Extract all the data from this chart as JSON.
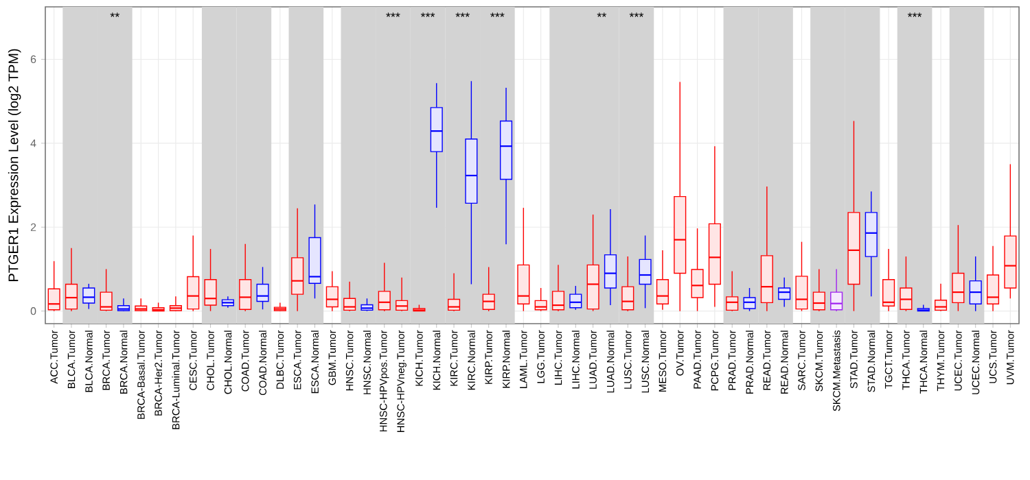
{
  "chart_data": {
    "type": "box",
    "ylabel": "PTGER1 Expression Level (log2 TPM)",
    "categories": [
      "ACC.Tumor",
      "BLCA.Tumor",
      "BLCA.Normal",
      "BRCA.Tumor",
      "BRCA.Normal",
      "BRCA-Basal.Tumor",
      "BRCA-Her2.Tumor",
      "BRCA-Luminal.Tumor",
      "CESC.Tumor",
      "CHOL.Tumor",
      "CHOL.Normal",
      "COAD.Tumor",
      "COAD.Normal",
      "DLBC.Tumor",
      "ESCA.Tumor",
      "ESCA.Normal",
      "GBM.Tumor",
      "HNSC.Tumor",
      "HNSC.Normal",
      "HNSC-HPVpos.Tumor",
      "HNSC-HPVneg.Tumor",
      "KICH.Tumor",
      "KICH.Normal",
      "KIRC.Tumor",
      "KIRC.Normal",
      "KIRP.Tumor",
      "KIRP.Normal",
      "LAML.Tumor",
      "LGG.Tumor",
      "LIHC.Tumor",
      "LIHC.Normal",
      "LUAD.Tumor",
      "LUAD.Normal",
      "LUSC.Tumor",
      "LUSC.Normal",
      "MESO.Tumor",
      "OV.Tumor",
      "PAAD.Tumor",
      "PCPG.Tumor",
      "PRAD.Tumor",
      "PRAD.Normal",
      "READ.Tumor",
      "READ.Normal",
      "SARC.Tumor",
      "SKCM.Tumor",
      "SKCM.Metastasis",
      "STAD.Tumor",
      "STAD.Normal",
      "TGCT.Tumor",
      "THCA.Tumor",
      "THCA.Normal",
      "THYM.Tumor",
      "UCEC.Tumor",
      "UCEC.Normal",
      "UCS.Tumor",
      "UVM.Tumor"
    ],
    "colors": [
      "#ff0000",
      "#ff0000",
      "#0000ff",
      "#ff0000",
      "#0000ff",
      "#ff0000",
      "#ff0000",
      "#ff0000",
      "#ff0000",
      "#ff0000",
      "#0000ff",
      "#ff0000",
      "#0000ff",
      "#ff0000",
      "#ff0000",
      "#0000ff",
      "#ff0000",
      "#ff0000",
      "#0000ff",
      "#ff0000",
      "#ff0000",
      "#ff0000",
      "#0000ff",
      "#ff0000",
      "#0000ff",
      "#ff0000",
      "#0000ff",
      "#ff0000",
      "#ff0000",
      "#ff0000",
      "#0000ff",
      "#ff0000",
      "#0000ff",
      "#ff0000",
      "#0000ff",
      "#ff0000",
      "#ff0000",
      "#ff0000",
      "#ff0000",
      "#ff0000",
      "#0000ff",
      "#ff0000",
      "#0000ff",
      "#ff0000",
      "#ff0000",
      "#a020f0",
      "#ff0000",
      "#0000ff",
      "#ff0000",
      "#ff0000",
      "#0000ff",
      "#ff0000",
      "#ff0000",
      "#0000ff",
      "#ff0000",
      "#ff0000"
    ],
    "boxes": [
      {
        "low": 0,
        "q1": 0.03,
        "median": 0.17,
        "q3": 0.53,
        "high": 1.19
      },
      {
        "low": 0,
        "q1": 0.05,
        "median": 0.32,
        "q3": 0.64,
        "high": 1.5
      },
      {
        "low": 0.05,
        "q1": 0.19,
        "median": 0.33,
        "q3": 0.55,
        "high": 0.65
      },
      {
        "low": 0,
        "q1": 0.02,
        "median": 0.1,
        "q3": 0.45,
        "high": 1.0
      },
      {
        "low": 0,
        "q1": 0.01,
        "median": 0.05,
        "q3": 0.13,
        "high": 0.3
      },
      {
        "low": 0,
        "q1": 0.01,
        "median": 0.05,
        "q3": 0.12,
        "high": 0.3
      },
      {
        "low": 0,
        "q1": 0.0,
        "median": 0.03,
        "q3": 0.08,
        "high": 0.2
      },
      {
        "low": 0,
        "q1": 0.01,
        "median": 0.07,
        "q3": 0.13,
        "high": 0.35
      },
      {
        "low": 0,
        "q1": 0.05,
        "median": 0.36,
        "q3": 0.82,
        "high": 1.8
      },
      {
        "low": 0,
        "q1": 0.14,
        "median": 0.3,
        "q3": 0.75,
        "high": 1.48
      },
      {
        "low": 0.08,
        "q1": 0.13,
        "median": 0.2,
        "q3": 0.27,
        "high": 0.35
      },
      {
        "low": 0,
        "q1": 0.04,
        "median": 0.33,
        "q3": 0.75,
        "high": 1.6
      },
      {
        "low": 0.04,
        "q1": 0.23,
        "median": 0.36,
        "q3": 0.64,
        "high": 1.05
      },
      {
        "low": 0,
        "q1": 0.01,
        "median": 0.05,
        "q3": 0.09,
        "high": 0.2
      },
      {
        "low": 0,
        "q1": 0.4,
        "median": 0.72,
        "q3": 1.27,
        "high": 2.45
      },
      {
        "low": 0.3,
        "q1": 0.66,
        "median": 0.82,
        "q3": 1.75,
        "high": 2.54
      },
      {
        "low": 0,
        "q1": 0.1,
        "median": 0.28,
        "q3": 0.58,
        "high": 0.95
      },
      {
        "low": 0,
        "q1": 0.02,
        "median": 0.1,
        "q3": 0.3,
        "high": 0.7
      },
      {
        "low": 0,
        "q1": 0.02,
        "median": 0.07,
        "q3": 0.15,
        "high": 0.3
      },
      {
        "low": 0,
        "q1": 0.03,
        "median": 0.21,
        "q3": 0.47,
        "high": 1.15
      },
      {
        "low": 0,
        "q1": 0.02,
        "median": 0.12,
        "q3": 0.25,
        "high": 0.8
      },
      {
        "low": 0,
        "q1": 0.0,
        "median": 0.02,
        "q3": 0.06,
        "high": 0.15
      },
      {
        "low": 2.46,
        "q1": 3.8,
        "median": 4.29,
        "q3": 4.85,
        "high": 5.43
      },
      {
        "low": 0,
        "q1": 0.02,
        "median": 0.1,
        "q3": 0.28,
        "high": 0.9
      },
      {
        "low": 0.64,
        "q1": 2.57,
        "median": 3.23,
        "q3": 4.1,
        "high": 5.48
      },
      {
        "low": 0,
        "q1": 0.04,
        "median": 0.23,
        "q3": 0.4,
        "high": 1.05
      },
      {
        "low": 1.59,
        "q1": 3.14,
        "median": 3.93,
        "q3": 4.53,
        "high": 5.32
      },
      {
        "low": 0,
        "q1": 0.17,
        "median": 0.36,
        "q3": 1.1,
        "high": 2.46
      },
      {
        "low": 0,
        "q1": 0.03,
        "median": 0.1,
        "q3": 0.25,
        "high": 0.55
      },
      {
        "low": 0,
        "q1": 0.03,
        "median": 0.14,
        "q3": 0.47,
        "high": 1.1
      },
      {
        "low": 0.03,
        "q1": 0.08,
        "median": 0.21,
        "q3": 0.4,
        "high": 0.6
      },
      {
        "low": 0,
        "q1": 0.05,
        "median": 0.64,
        "q3": 1.1,
        "high": 2.3
      },
      {
        "low": 0.14,
        "q1": 0.55,
        "median": 0.9,
        "q3": 1.34,
        "high": 2.43
      },
      {
        "low": 0,
        "q1": 0.03,
        "median": 0.23,
        "q3": 0.58,
        "high": 1.3
      },
      {
        "low": 0.07,
        "q1": 0.64,
        "median": 0.86,
        "q3": 1.23,
        "high": 1.8
      },
      {
        "low": 0.03,
        "q1": 0.17,
        "median": 0.36,
        "q3": 0.75,
        "high": 1.45
      },
      {
        "low": 0,
        "q1": 0.9,
        "median": 1.7,
        "q3": 2.73,
        "high": 5.46
      },
      {
        "low": 0,
        "q1": 0.32,
        "median": 0.61,
        "q3": 0.99,
        "high": 1.97
      },
      {
        "low": 0.1,
        "q1": 0.64,
        "median": 1.28,
        "q3": 2.08,
        "high": 3.93
      },
      {
        "low": 0,
        "q1": 0.02,
        "median": 0.21,
        "q3": 0.34,
        "high": 0.95
      },
      {
        "low": 0,
        "q1": 0.06,
        "median": 0.21,
        "q3": 0.32,
        "high": 0.55
      },
      {
        "low": 0,
        "q1": 0.2,
        "median": 0.58,
        "q3": 1.32,
        "high": 2.97
      },
      {
        "low": 0.1,
        "q1": 0.28,
        "median": 0.45,
        "q3": 0.55,
        "high": 0.8
      },
      {
        "low": 0,
        "q1": 0.05,
        "median": 0.28,
        "q3": 0.83,
        "high": 1.65
      },
      {
        "low": 0,
        "q1": 0.03,
        "median": 0.19,
        "q3": 0.45,
        "high": 1.0
      },
      {
        "low": 0,
        "q1": 0.03,
        "median": 0.18,
        "q3": 0.45,
        "high": 1.0
      },
      {
        "low": 0,
        "q1": 0.64,
        "median": 1.45,
        "q3": 2.35,
        "high": 4.53
      },
      {
        "low": 0.35,
        "q1": 1.3,
        "median": 1.86,
        "q3": 2.35,
        "high": 2.85
      },
      {
        "low": 0,
        "q1": 0.12,
        "median": 0.21,
        "q3": 0.75,
        "high": 1.48
      },
      {
        "low": 0,
        "q1": 0.04,
        "median": 0.28,
        "q3": 0.55,
        "high": 1.3
      },
      {
        "low": 0,
        "q1": 0.0,
        "median": 0.02,
        "q3": 0.06,
        "high": 0.15
      },
      {
        "low": 0,
        "q1": 0.02,
        "median": 0.1,
        "q3": 0.26,
        "high": 0.65
      },
      {
        "low": 0,
        "q1": 0.2,
        "median": 0.45,
        "q3": 0.9,
        "high": 2.05
      },
      {
        "low": 0,
        "q1": 0.17,
        "median": 0.45,
        "q3": 0.72,
        "high": 1.3
      },
      {
        "low": 0,
        "q1": 0.17,
        "median": 0.33,
        "q3": 0.86,
        "high": 1.55
      },
      {
        "low": 0.3,
        "q1": 0.55,
        "median": 1.08,
        "q3": 1.79,
        "high": 3.5
      }
    ],
    "bands": [
      {
        "axis": "x",
        "from": "BLCA.Tumor",
        "to": "BLCA.Normal",
        "color": "#d3d3d3"
      },
      {
        "axis": "x",
        "from": "BRCA.Tumor",
        "to": "BRCA.Normal",
        "color": "#d3d3d3",
        "label": "**"
      },
      {
        "axis": "x",
        "from": "CHOL.Tumor",
        "to": "CHOL.Normal",
        "color": "#d3d3d3"
      },
      {
        "axis": "x",
        "from": "COAD.Tumor",
        "to": "COAD.Normal",
        "color": "#d3d3d3"
      },
      {
        "axis": "x",
        "from": "ESCA.Tumor",
        "to": "ESCA.Normal",
        "color": "#d3d3d3"
      },
      {
        "axis": "x",
        "from": "HNSC.Tumor",
        "to": "HNSC.Normal",
        "color": "#d3d3d3"
      },
      {
        "axis": "x",
        "from": "HNSC-HPVpos.Tumor",
        "to": "HNSC-HPVneg.Tumor",
        "color": "#d3d3d3",
        "label": "***"
      },
      {
        "axis": "x",
        "from": "KICH.Tumor",
        "to": "KICH.Normal",
        "color": "#d3d3d3",
        "label": "***"
      },
      {
        "axis": "x",
        "from": "KIRC.Tumor",
        "to": "KIRC.Normal",
        "color": "#d3d3d3",
        "label": "***"
      },
      {
        "axis": "x",
        "from": "KIRP.Tumor",
        "to": "KIRP.Normal",
        "color": "#d3d3d3",
        "label": "***"
      },
      {
        "axis": "x",
        "from": "LIHC.Tumor",
        "to": "LIHC.Normal",
        "color": "#d3d3d3"
      },
      {
        "axis": "x",
        "from": "LUAD.Tumor",
        "to": "LUAD.Normal",
        "color": "#d3d3d3",
        "label": "**"
      },
      {
        "axis": "x",
        "from": "LUSC.Tumor",
        "to": "LUSC.Normal",
        "color": "#d3d3d3",
        "label": "***"
      },
      {
        "axis": "x",
        "from": "PRAD.Tumor",
        "to": "PRAD.Normal",
        "color": "#d3d3d3"
      },
      {
        "axis": "x",
        "from": "READ.Tumor",
        "to": "READ.Normal",
        "color": "#d3d3d3"
      },
      {
        "axis": "x",
        "from": "SKCM.Tumor",
        "to": "SKCM.Metastasis",
        "color": "#d3d3d3"
      },
      {
        "axis": "x",
        "from": "STAD.Tumor",
        "to": "STAD.Normal",
        "color": "#d3d3d3"
      },
      {
        "axis": "x",
        "from": "THCA.Tumor",
        "to": "THCA.Normal",
        "color": "#d3d3d3",
        "label": "***"
      },
      {
        "axis": "x",
        "from": "UCEC.Tumor",
        "to": "UCEC.Normal",
        "color": "#d3d3d3"
      }
    ],
    "ylim": [
      -0.3,
      7.25
    ],
    "yticks": [
      0,
      2,
      4,
      6
    ],
    "grid": true
  }
}
